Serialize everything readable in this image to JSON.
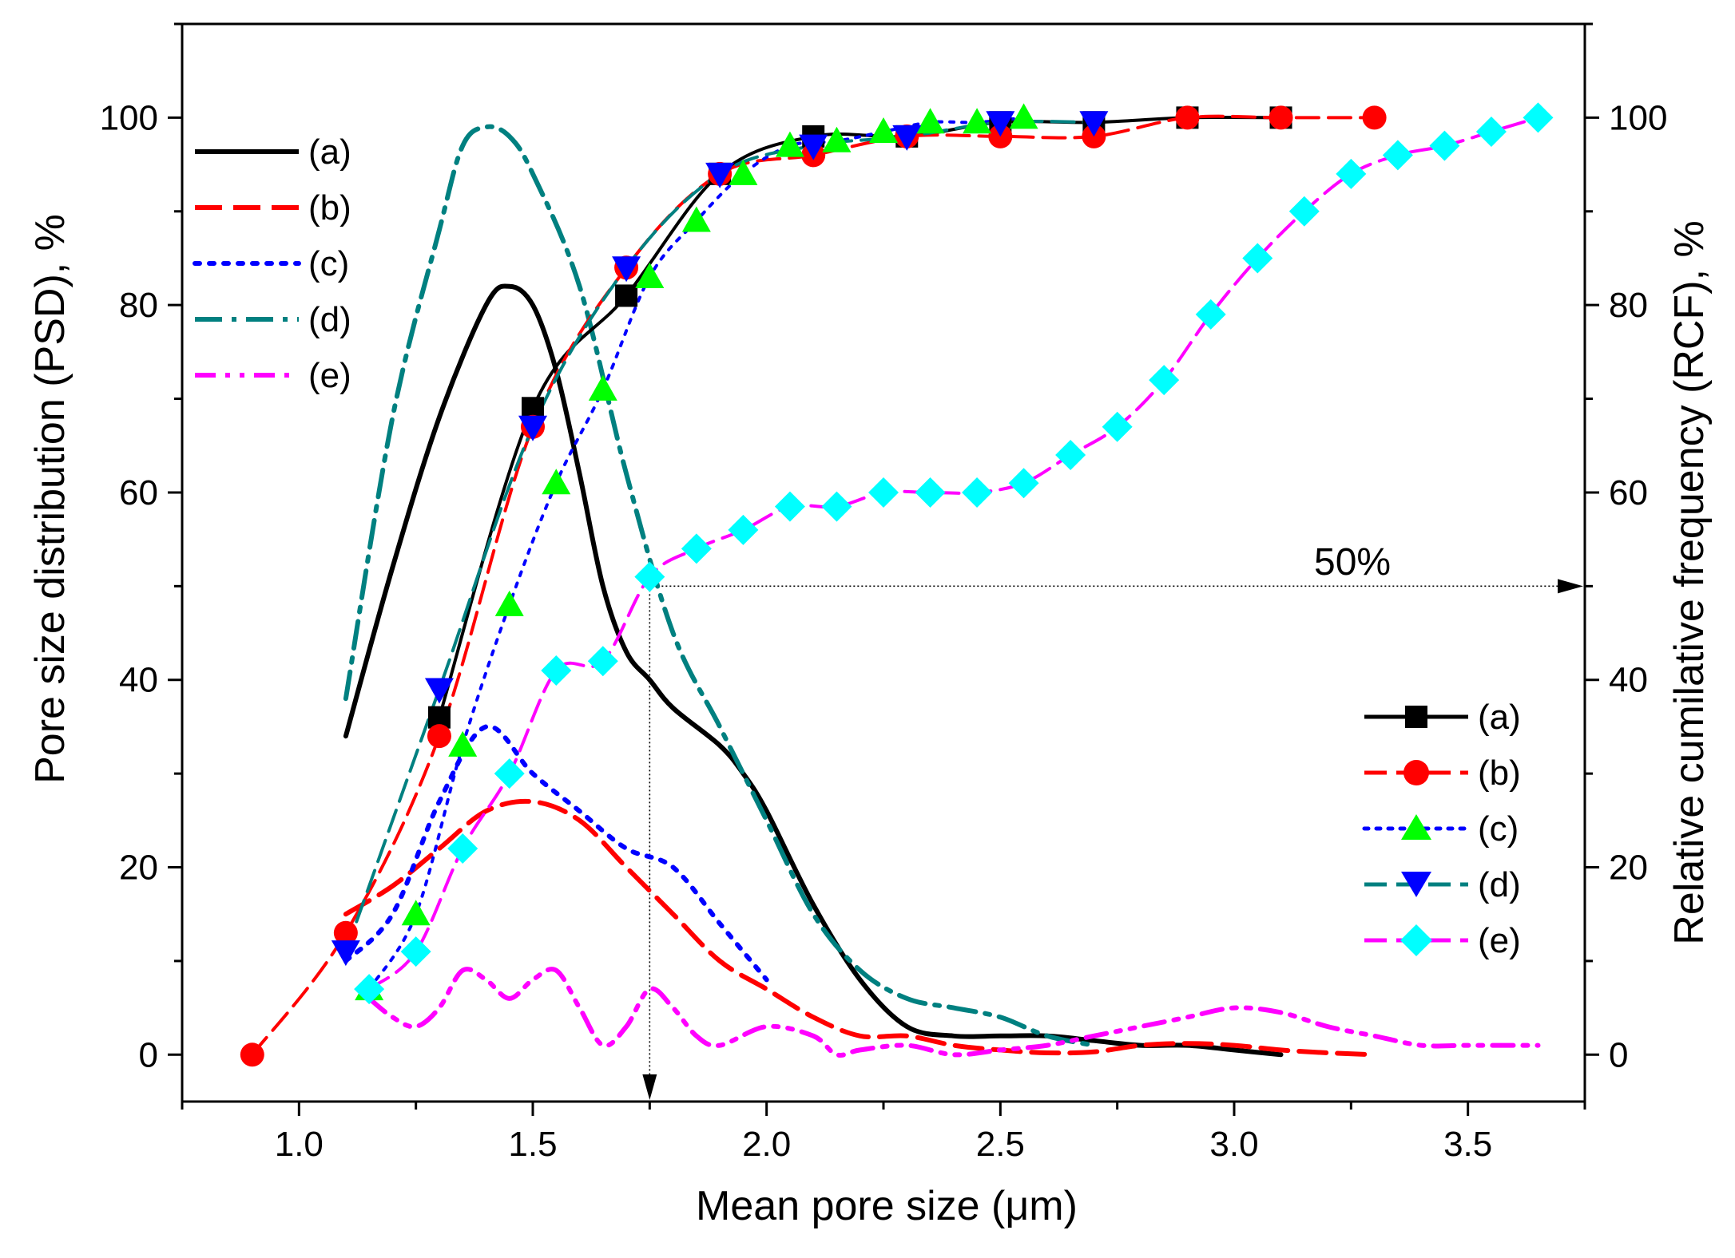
{
  "chart_data": {
    "type": "line",
    "xlabel": "Mean pore size (μm)",
    "ylabel_left": "Pore size distribution (PSD), %",
    "ylabel_right": "Relative cumilative frequency (RCF), %",
    "xlim": [
      0.75,
      3.75
    ],
    "ylim": [
      -5,
      110
    ],
    "xticks": [
      1.0,
      1.5,
      2.0,
      2.5,
      3.0,
      3.5
    ],
    "xtick_labels": [
      "1.0",
      "1.5",
      "2.0",
      "2.5",
      "3.0",
      "3.5"
    ],
    "yticks": [
      0,
      20,
      40,
      60,
      80,
      100
    ],
    "ytick_labels": [
      "0",
      "20",
      "40",
      "60",
      "80",
      "100"
    ],
    "annotation": "50%",
    "reference": {
      "x": 1.75,
      "y": 50
    },
    "psd_legend": [
      "(a)",
      "(b)",
      "(c)",
      "(d)",
      "(e)"
    ],
    "rcf_legend": [
      "(a)",
      "(b)",
      "(c)",
      "(d)",
      "(e)"
    ],
    "colors": {
      "a": "#000000",
      "b": "#ff0000",
      "c": "#0000ff",
      "d": "#008080",
      "e": "#ff00ff",
      "marker_c": "#00ff00",
      "marker_e": "#00ffff"
    },
    "psd_series": [
      {
        "name": "(a)",
        "x": [
          1.1,
          1.2,
          1.3,
          1.4,
          1.45,
          1.5,
          1.55,
          1.6,
          1.65,
          1.7,
          1.75,
          1.8,
          1.9,
          1.95,
          2.0,
          2.1,
          2.2,
          2.3,
          2.4,
          2.5,
          2.6,
          2.7,
          2.8,
          2.9,
          3.0,
          3.1
        ],
        "y": [
          34,
          52,
          68,
          80,
          82,
          80,
          73,
          62,
          50,
          43,
          40,
          37,
          33,
          30,
          26,
          16,
          8,
          3,
          2,
          2,
          2,
          1.5,
          1,
          1,
          0.5,
          0
        ]
      },
      {
        "name": "(b)",
        "x": [
          1.1,
          1.2,
          1.3,
          1.4,
          1.5,
          1.6,
          1.7,
          1.8,
          1.9,
          2.0,
          2.1,
          2.2,
          2.3,
          2.4,
          2.5,
          2.6,
          2.7,
          2.8,
          2.9,
          3.0,
          3.1,
          3.2,
          3.3
        ],
        "y": [
          15,
          18,
          22,
          26,
          27,
          25,
          20,
          15,
          10,
          7,
          4,
          2,
          2,
          1,
          0.5,
          0.2,
          0.3,
          1,
          1.2,
          1,
          0.5,
          0.2,
          0
        ]
      },
      {
        "name": "(c)",
        "x": [
          1.1,
          1.2,
          1.3,
          1.4,
          1.5,
          1.6,
          1.7,
          1.8,
          1.9,
          2.0
        ],
        "y": [
          10,
          15,
          27,
          35,
          30,
          26,
          22,
          20,
          14,
          8
        ]
      },
      {
        "name": "(d)",
        "x": [
          1.1,
          1.2,
          1.3,
          1.35,
          1.4,
          1.45,
          1.5,
          1.6,
          1.7,
          1.8,
          1.9,
          2.0,
          2.1,
          2.2,
          2.3,
          2.4,
          2.5,
          2.6,
          2.7
        ],
        "y": [
          38,
          68,
          88,
          97,
          99,
          98,
          94,
          82,
          62,
          45,
          35,
          25,
          15,
          9,
          6,
          5,
          4,
          2,
          1
        ]
      },
      {
        "name": "(e)",
        "x": [
          1.15,
          1.2,
          1.25,
          1.3,
          1.35,
          1.4,
          1.45,
          1.5,
          1.55,
          1.6,
          1.65,
          1.7,
          1.75,
          1.8,
          1.85,
          1.9,
          2.0,
          2.1,
          2.15,
          2.2,
          2.3,
          2.4,
          2.5,
          2.6,
          2.7,
          2.8,
          2.9,
          3.0,
          3.1,
          3.2,
          3.3,
          3.4,
          3.5,
          3.65
        ],
        "y": [
          6,
          4,
          3,
          5,
          9,
          8,
          6,
          8,
          9,
          5,
          1,
          3,
          7,
          5,
          2,
          1,
          3,
          2,
          0,
          0.5,
          1,
          0,
          0.5,
          1,
          2,
          3,
          4,
          5,
          4.5,
          3,
          2,
          1,
          1,
          1
        ]
      }
    ],
    "rcf_series": [
      {
        "name": "(a)",
        "marker": "square",
        "x": [
          1.3,
          1.5,
          1.7,
          1.9,
          2.1,
          2.3,
          2.5,
          2.7,
          2.9,
          3.1
        ],
        "y": [
          36,
          69,
          81,
          94,
          98,
          98,
          99.5,
          99.5,
          100,
          100
        ]
      },
      {
        "name": "(b)",
        "marker": "circle",
        "x": [
          0.9,
          1.1,
          1.3,
          1.5,
          1.7,
          1.9,
          2.1,
          2.3,
          2.5,
          2.7,
          2.9,
          3.1,
          3.3
        ],
        "y": [
          0,
          13,
          34,
          67,
          84,
          94,
          96,
          98,
          98,
          98,
          100,
          100,
          100
        ]
      },
      {
        "name": "(c)",
        "marker": "triangle-up",
        "x": [
          1.15,
          1.25,
          1.35,
          1.45,
          1.55,
          1.65,
          1.75,
          1.85,
          1.95,
          2.05,
          2.15,
          2.25,
          2.35,
          2.45,
          2.55
        ],
        "y": [
          7,
          15,
          33,
          48,
          61,
          71,
          83,
          89,
          94,
          97,
          97.5,
          98.5,
          99.5,
          99.5,
          100
        ]
      },
      {
        "name": "(d)",
        "marker": "triangle-down",
        "x": [
          1.1,
          1.3,
          1.5,
          1.7,
          1.9,
          2.1,
          2.3,
          2.5,
          2.7
        ],
        "y": [
          11,
          39,
          67,
          84,
          94,
          97,
          98,
          99.5,
          99.5
        ]
      },
      {
        "name": "(e)",
        "marker": "diamond",
        "x": [
          1.15,
          1.25,
          1.35,
          1.45,
          1.55,
          1.65,
          1.75,
          1.85,
          1.95,
          2.05,
          2.15,
          2.25,
          2.35,
          2.45,
          2.55,
          2.65,
          2.75,
          2.85,
          2.95,
          3.05,
          3.15,
          3.25,
          3.35,
          3.45,
          3.55,
          3.65
        ],
        "y": [
          7,
          11,
          22,
          30,
          41,
          42,
          51,
          54,
          56,
          58.5,
          58.5,
          60,
          60,
          60,
          61,
          64,
          67,
          72,
          79,
          85,
          90,
          94,
          96,
          97,
          98.5,
          100
        ]
      }
    ]
  }
}
